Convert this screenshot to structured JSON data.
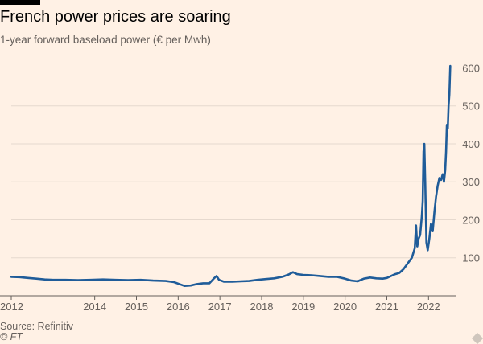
{
  "header": {
    "title": "French power prices are soaring",
    "subtitle": "1-year forward baseload power (€ per Mwh)"
  },
  "footer": {
    "source": "Source: Refinitiv",
    "credit": "© FT"
  },
  "colors": {
    "background": "#FFF1E5",
    "line": "#1F5C99",
    "grid": "#E6D9CE",
    "text": "#66605C"
  },
  "chart_data": {
    "type": "line",
    "title": "French power prices are soaring",
    "subtitle": "1-year forward baseload power (€ per Mwh)",
    "xlabel": "",
    "ylabel": "",
    "ylim": [
      0,
      620
    ],
    "xlim": [
      2012.0,
      2022.65
    ],
    "y_ticks": [
      100,
      200,
      300,
      400,
      500,
      600
    ],
    "x_ticks": [
      2012,
      2014,
      2015,
      2016,
      2017,
      2018,
      2019,
      2020,
      2021,
      2022
    ],
    "x_tick_labels": [
      "2012",
      "2014",
      "2015",
      "2016",
      "2017",
      "2018",
      "2019",
      "2020",
      "2021",
      "2022"
    ],
    "grid": "horizontal",
    "y_axis_side": "right",
    "series": [
      {
        "points": [
          [
            2012.0,
            50
          ],
          [
            2012.2,
            49
          ],
          [
            2012.4,
            47
          ],
          [
            2012.6,
            45
          ],
          [
            2012.8,
            43
          ],
          [
            2013.0,
            42
          ],
          [
            2013.3,
            42
          ],
          [
            2013.6,
            41
          ],
          [
            2013.9,
            42
          ],
          [
            2014.2,
            43
          ],
          [
            2014.5,
            42
          ],
          [
            2014.8,
            41
          ],
          [
            2015.1,
            42
          ],
          [
            2015.4,
            40
          ],
          [
            2015.7,
            39
          ],
          [
            2015.9,
            36
          ],
          [
            2016.05,
            30
          ],
          [
            2016.15,
            26
          ],
          [
            2016.3,
            27
          ],
          [
            2016.45,
            31
          ],
          [
            2016.6,
            33
          ],
          [
            2016.75,
            33
          ],
          [
            2016.85,
            45
          ],
          [
            2016.92,
            52
          ],
          [
            2016.98,
            42
          ],
          [
            2017.1,
            37
          ],
          [
            2017.3,
            37
          ],
          [
            2017.5,
            38
          ],
          [
            2017.7,
            39
          ],
          [
            2017.9,
            42
          ],
          [
            2018.1,
            44
          ],
          [
            2018.3,
            46
          ],
          [
            2018.5,
            50
          ],
          [
            2018.65,
            56
          ],
          [
            2018.75,
            62
          ],
          [
            2018.85,
            57
          ],
          [
            2019.0,
            55
          ],
          [
            2019.2,
            54
          ],
          [
            2019.4,
            52
          ],
          [
            2019.6,
            50
          ],
          [
            2019.8,
            50
          ],
          [
            2020.0,
            45
          ],
          [
            2020.15,
            40
          ],
          [
            2020.3,
            38
          ],
          [
            2020.45,
            45
          ],
          [
            2020.6,
            48
          ],
          [
            2020.75,
            46
          ],
          [
            2020.9,
            45
          ],
          [
            2021.0,
            47
          ],
          [
            2021.1,
            52
          ],
          [
            2021.2,
            57
          ],
          [
            2021.3,
            60
          ],
          [
            2021.4,
            70
          ],
          [
            2021.5,
            85
          ],
          [
            2021.6,
            100
          ],
          [
            2021.67,
            125
          ],
          [
            2021.7,
            185
          ],
          [
            2021.73,
            130
          ],
          [
            2021.76,
            150
          ],
          [
            2021.8,
            160
          ],
          [
            2021.84,
            210
          ],
          [
            2021.86,
            250
          ],
          [
            2021.88,
            380
          ],
          [
            2021.9,
            400
          ],
          [
            2021.92,
            300
          ],
          [
            2021.95,
            140
          ],
          [
            2021.98,
            120
          ],
          [
            2022.02,
            150
          ],
          [
            2022.06,
            190
          ],
          [
            2022.1,
            170
          ],
          [
            2022.14,
            220
          ],
          [
            2022.18,
            260
          ],
          [
            2022.22,
            290
          ],
          [
            2022.26,
            310
          ],
          [
            2022.3,
            305
          ],
          [
            2022.34,
            320
          ],
          [
            2022.37,
            300
          ],
          [
            2022.4,
            330
          ],
          [
            2022.42,
            380
          ],
          [
            2022.44,
            450
          ],
          [
            2022.46,
            440
          ],
          [
            2022.48,
            500
          ],
          [
            2022.5,
            530
          ],
          [
            2022.52,
            605
          ]
        ]
      }
    ]
  }
}
